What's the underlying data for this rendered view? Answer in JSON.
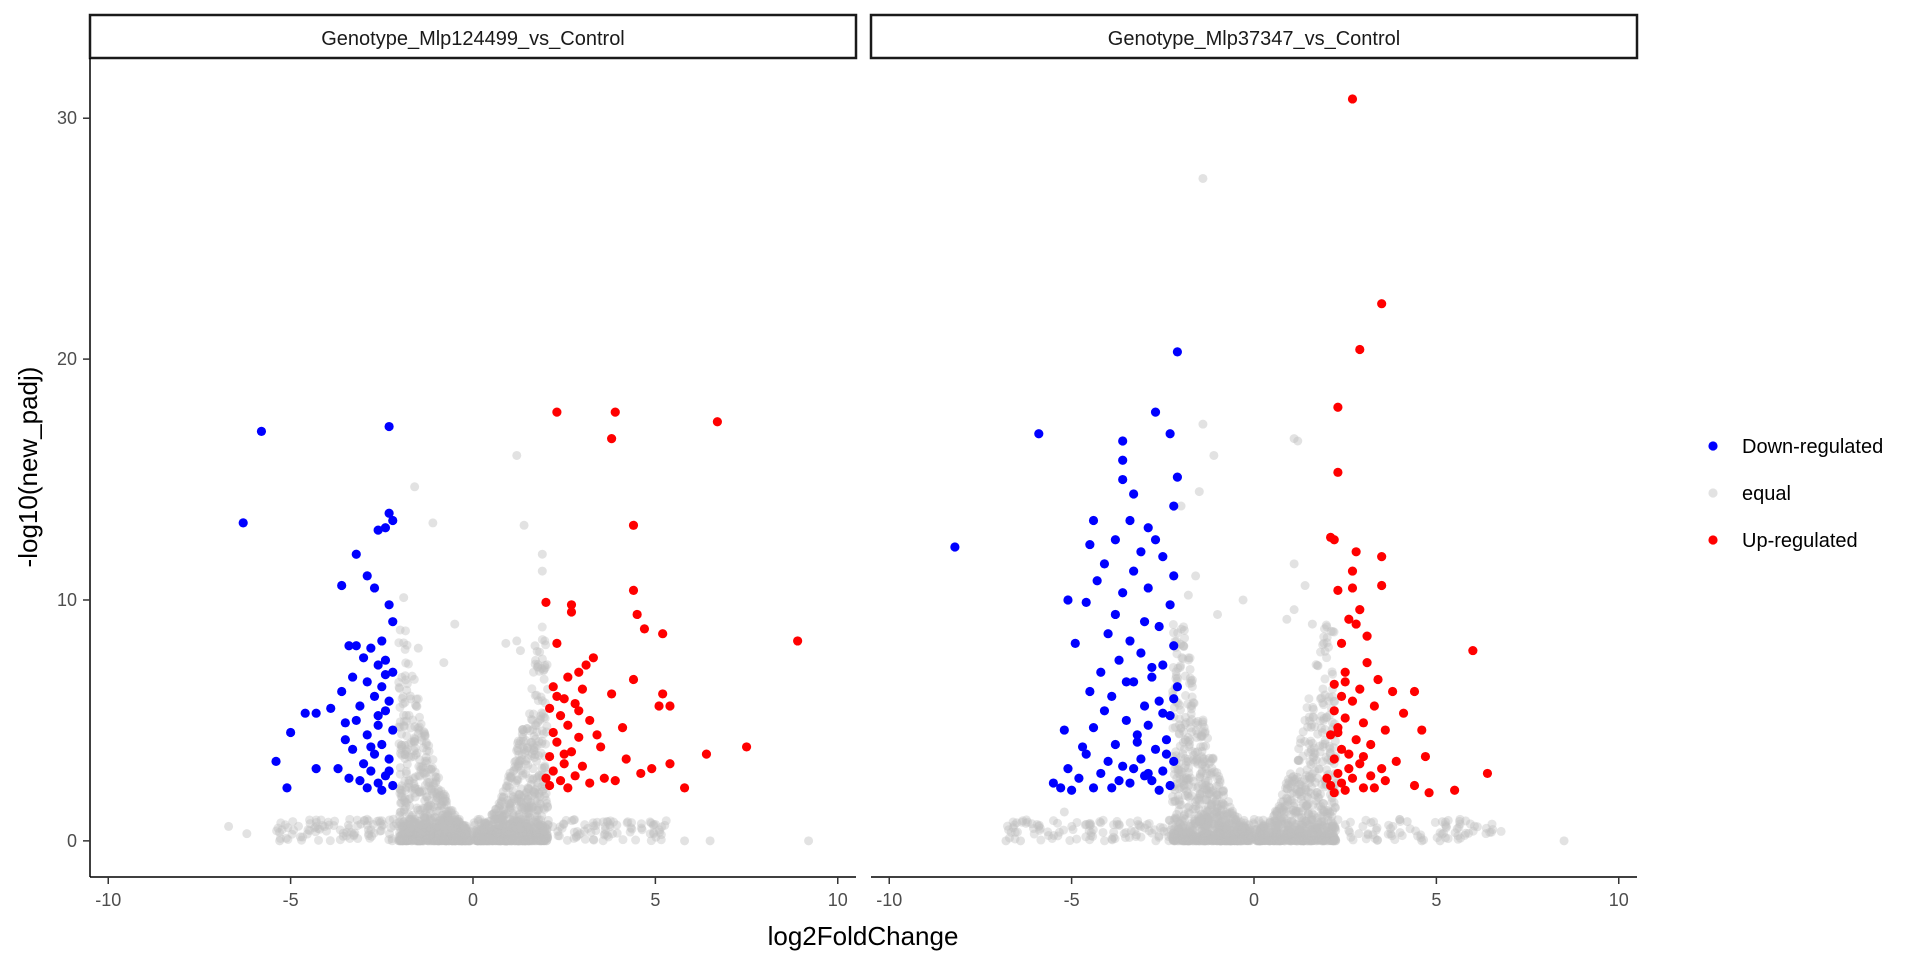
{
  "chart_data": {
    "type": "scatter",
    "xlabel": "log2FoldChange",
    "ylabel": "-log10(new_padj)",
    "xlim": [
      -10.5,
      10.5
    ],
    "ylim": [
      -1.5,
      32.5
    ],
    "x_ticks": [
      -10,
      -5,
      0,
      5,
      10
    ],
    "y_ticks": [
      0,
      10,
      20,
      30
    ],
    "grid": false,
    "legend_position": "right",
    "legend": [
      {
        "name": "Down-regulated",
        "color": "#0000ff"
      },
      {
        "name": "equal",
        "color": "#bebebe"
      },
      {
        "name": "Up-regulated",
        "color": "#ff0000"
      }
    ],
    "panels": [
      {
        "title": "Genotype_Mlp124499_vs_Control",
        "down": [
          [
            -5.8,
            17.0
          ],
          [
            -6.3,
            13.2
          ],
          [
            -2.3,
            17.2
          ],
          [
            -2.3,
            13.6
          ],
          [
            -2.2,
            13.3
          ],
          [
            -2.4,
            13.0
          ],
          [
            -2.6,
            12.9
          ],
          [
            -3.2,
            11.9
          ],
          [
            -2.9,
            11.0
          ],
          [
            -3.6,
            10.6
          ],
          [
            -2.7,
            10.5
          ],
          [
            -2.3,
            9.8
          ],
          [
            -2.2,
            9.1
          ],
          [
            -2.5,
            8.3
          ],
          [
            -3.2,
            8.1
          ],
          [
            -3.4,
            8.1
          ],
          [
            -2.8,
            8.0
          ],
          [
            -3.0,
            7.6
          ],
          [
            -2.4,
            7.5
          ],
          [
            -2.6,
            7.3
          ],
          [
            -2.2,
            7.0
          ],
          [
            -3.3,
            6.8
          ],
          [
            -2.9,
            6.6
          ],
          [
            -2.5,
            6.4
          ],
          [
            -3.6,
            6.2
          ],
          [
            -2.7,
            6.0
          ],
          [
            -2.3,
            5.8
          ],
          [
            -3.1,
            5.6
          ],
          [
            -2.4,
            5.4
          ],
          [
            -3.9,
            5.5
          ],
          [
            -4.3,
            5.3
          ],
          [
            -4.6,
            5.3
          ],
          [
            -5.0,
            4.5
          ],
          [
            -3.2,
            5.0
          ],
          [
            -2.6,
            4.8
          ],
          [
            -2.2,
            4.6
          ],
          [
            -2.9,
            4.4
          ],
          [
            -3.5,
            4.2
          ],
          [
            -2.5,
            4.0
          ],
          [
            -3.3,
            3.8
          ],
          [
            -2.7,
            3.6
          ],
          [
            -2.3,
            3.4
          ],
          [
            -3.0,
            3.2
          ],
          [
            -5.4,
            3.3
          ],
          [
            -4.3,
            3.0
          ],
          [
            -3.7,
            3.0
          ],
          [
            -2.8,
            2.9
          ],
          [
            -2.4,
            2.7
          ],
          [
            -3.1,
            2.5
          ],
          [
            -2.6,
            2.4
          ],
          [
            -2.2,
            2.3
          ],
          [
            -2.9,
            2.2
          ],
          [
            -5.1,
            2.2
          ],
          [
            -3.4,
            2.6
          ],
          [
            -2.5,
            2.1
          ],
          [
            -2.3,
            2.9
          ],
          [
            -2.8,
            3.9
          ],
          [
            -3.5,
            4.9
          ],
          [
            -2.4,
            6.9
          ],
          [
            -2.6,
            5.2
          ]
        ],
        "up": [
          [
            2.3,
            17.8
          ],
          [
            3.9,
            17.8
          ],
          [
            6.7,
            17.4
          ],
          [
            3.8,
            16.7
          ],
          [
            4.4,
            13.1
          ],
          [
            4.4,
            10.4
          ],
          [
            2.0,
            9.9
          ],
          [
            2.7,
            9.8
          ],
          [
            2.7,
            9.5
          ],
          [
            4.5,
            9.4
          ],
          [
            4.7,
            8.8
          ],
          [
            5.2,
            8.6
          ],
          [
            8.9,
            8.3
          ],
          [
            2.3,
            8.2
          ],
          [
            3.3,
            7.6
          ],
          [
            3.1,
            7.3
          ],
          [
            2.9,
            7.0
          ],
          [
            2.6,
            6.8
          ],
          [
            4.4,
            6.7
          ],
          [
            2.2,
            6.4
          ],
          [
            3.0,
            6.3
          ],
          [
            3.8,
            6.1
          ],
          [
            5.2,
            6.1
          ],
          [
            2.5,
            5.9
          ],
          [
            2.8,
            5.7
          ],
          [
            5.1,
            5.6
          ],
          [
            5.4,
            5.6
          ],
          [
            2.1,
            5.5
          ],
          [
            2.4,
            5.2
          ],
          [
            3.2,
            5.0
          ],
          [
            2.6,
            4.8
          ],
          [
            4.1,
            4.7
          ],
          [
            2.2,
            4.5
          ],
          [
            2.9,
            4.3
          ],
          [
            2.3,
            4.1
          ],
          [
            7.5,
            3.9
          ],
          [
            3.5,
            3.9
          ],
          [
            2.7,
            3.7
          ],
          [
            6.4,
            3.6
          ],
          [
            2.1,
            3.5
          ],
          [
            4.2,
            3.4
          ],
          [
            2.5,
            3.2
          ],
          [
            5.4,
            3.2
          ],
          [
            3.0,
            3.1
          ],
          [
            2.2,
            2.9
          ],
          [
            4.6,
            2.8
          ],
          [
            2.8,
            2.7
          ],
          [
            3.6,
            2.6
          ],
          [
            2.4,
            2.5
          ],
          [
            3.2,
            2.4
          ],
          [
            2.1,
            2.3
          ],
          [
            5.8,
            2.2
          ],
          [
            2.6,
            2.2
          ],
          [
            3.9,
            2.5
          ],
          [
            4.9,
            3.0
          ],
          [
            2.0,
            2.6
          ],
          [
            2.5,
            3.6
          ],
          [
            3.4,
            4.4
          ],
          [
            2.9,
            5.4
          ],
          [
            2.3,
            6.0
          ]
        ],
        "equal_extra": [
          [
            1.2,
            16.0
          ],
          [
            -1.6,
            14.7
          ],
          [
            -1.1,
            13.2
          ],
          [
            1.4,
            13.1
          ],
          [
            1.9,
            11.9
          ],
          [
            1.9,
            11.2
          ],
          [
            -1.9,
            10.1
          ],
          [
            1.2,
            8.3
          ],
          [
            -0.5,
            9.0
          ],
          [
            0.9,
            8.2
          ],
          [
            1.7,
            8.1
          ],
          [
            1.3,
            7.9
          ],
          [
            -1.5,
            8.0
          ],
          [
            -0.8,
            7.4
          ],
          [
            -6.7,
            0.6
          ],
          [
            -6.2,
            0.3
          ],
          [
            9.2,
            0.0
          ],
          [
            6.5,
            0.0
          ],
          [
            5.8,
            0.0
          ],
          [
            -5.3,
            0.0
          ]
        ]
      },
      {
        "title": "Genotype_Mlp37347_vs_Control",
        "down": [
          [
            -2.1,
            20.3
          ],
          [
            -5.9,
            16.9
          ],
          [
            -2.7,
            17.8
          ],
          [
            -2.3,
            16.9
          ],
          [
            -3.6,
            16.6
          ],
          [
            -3.6,
            15.8
          ],
          [
            -2.1,
            15.1
          ],
          [
            -3.6,
            15.0
          ],
          [
            -3.3,
            14.4
          ],
          [
            -2.2,
            13.9
          ],
          [
            -4.4,
            13.3
          ],
          [
            -3.4,
            13.3
          ],
          [
            -2.9,
            13.0
          ],
          [
            -8.2,
            12.2
          ],
          [
            -3.8,
            12.5
          ],
          [
            -2.7,
            12.5
          ],
          [
            -4.5,
            12.3
          ],
          [
            -3.1,
            12.0
          ],
          [
            -2.5,
            11.8
          ],
          [
            -4.1,
            11.5
          ],
          [
            -3.3,
            11.2
          ],
          [
            -2.2,
            11.0
          ],
          [
            -4.3,
            10.8
          ],
          [
            -2.9,
            10.5
          ],
          [
            -3.6,
            10.3
          ],
          [
            -5.1,
            10.0
          ],
          [
            -4.6,
            9.9
          ],
          [
            -2.3,
            9.8
          ],
          [
            -3.8,
            9.4
          ],
          [
            -3.0,
            9.1
          ],
          [
            -2.6,
            8.9
          ],
          [
            -4.0,
            8.6
          ],
          [
            -3.4,
            8.3
          ],
          [
            -2.2,
            8.1
          ],
          [
            -4.9,
            8.2
          ],
          [
            -3.1,
            7.8
          ],
          [
            -3.7,
            7.5
          ],
          [
            -2.5,
            7.3
          ],
          [
            -4.2,
            7.0
          ],
          [
            -2.8,
            6.8
          ],
          [
            -3.3,
            6.6
          ],
          [
            -2.1,
            6.4
          ],
          [
            -4.5,
            6.2
          ],
          [
            -3.9,
            6.0
          ],
          [
            -2.6,
            5.8
          ],
          [
            -3.0,
            5.6
          ],
          [
            -4.1,
            5.4
          ],
          [
            -2.3,
            5.2
          ],
          [
            -3.5,
            5.0
          ],
          [
            -2.9,
            4.8
          ],
          [
            -4.4,
            4.7
          ],
          [
            -5.2,
            4.6
          ],
          [
            -3.2,
            4.4
          ],
          [
            -2.4,
            4.2
          ],
          [
            -3.8,
            4.0
          ],
          [
            -2.7,
            3.8
          ],
          [
            -4.6,
            3.6
          ],
          [
            -3.1,
            3.4
          ],
          [
            -2.2,
            3.3
          ],
          [
            -3.6,
            3.1
          ],
          [
            -5.1,
            3.0
          ],
          [
            -2.5,
            2.9
          ],
          [
            -4.2,
            2.8
          ],
          [
            -3.0,
            2.7
          ],
          [
            -4.8,
            2.6
          ],
          [
            -2.8,
            2.5
          ],
          [
            -3.4,
            2.4
          ],
          [
            -5.5,
            2.4
          ],
          [
            -2.3,
            2.3
          ],
          [
            -3.9,
            2.2
          ],
          [
            -5.0,
            2.1
          ],
          [
            -2.6,
            2.1
          ],
          [
            -4.4,
            2.2
          ],
          [
            -5.3,
            2.2
          ],
          [
            -3.7,
            2.5
          ],
          [
            -2.9,
            2.8
          ],
          [
            -2.4,
            3.6
          ],
          [
            -3.2,
            4.1
          ],
          [
            -2.2,
            5.9
          ],
          [
            -3.5,
            6.6
          ],
          [
            -2.8,
            7.2
          ],
          [
            -4.0,
            3.3
          ],
          [
            -4.7,
            3.9
          ],
          [
            -3.3,
            3.0
          ],
          [
            -2.5,
            5.3
          ]
        ],
        "up": [
          [
            2.7,
            30.8
          ],
          [
            3.5,
            22.3
          ],
          [
            2.9,
            20.4
          ],
          [
            2.3,
            18.0
          ],
          [
            2.3,
            15.3
          ],
          [
            2.1,
            12.6
          ],
          [
            2.2,
            12.5
          ],
          [
            2.8,
            12.0
          ],
          [
            3.5,
            11.8
          ],
          [
            2.7,
            11.2
          ],
          [
            3.5,
            10.6
          ],
          [
            2.7,
            10.5
          ],
          [
            2.3,
            10.4
          ],
          [
            2.9,
            9.6
          ],
          [
            2.6,
            9.2
          ],
          [
            2.8,
            9.0
          ],
          [
            3.1,
            8.5
          ],
          [
            2.4,
            8.2
          ],
          [
            6.0,
            7.9
          ],
          [
            3.1,
            7.4
          ],
          [
            2.5,
            7.0
          ],
          [
            3.4,
            6.7
          ],
          [
            2.2,
            6.5
          ],
          [
            2.9,
            6.3
          ],
          [
            3.8,
            6.2
          ],
          [
            4.4,
            6.2
          ],
          [
            2.4,
            6.0
          ],
          [
            2.7,
            5.8
          ],
          [
            3.3,
            5.6
          ],
          [
            2.2,
            5.4
          ],
          [
            4.1,
            5.3
          ],
          [
            2.5,
            5.1
          ],
          [
            3.0,
            4.9
          ],
          [
            2.3,
            4.7
          ],
          [
            3.6,
            4.6
          ],
          [
            4.6,
            4.6
          ],
          [
            2.1,
            4.4
          ],
          [
            2.8,
            4.2
          ],
          [
            3.2,
            4.0
          ],
          [
            2.4,
            3.8
          ],
          [
            2.6,
            3.6
          ],
          [
            4.7,
            3.5
          ],
          [
            2.2,
            3.4
          ],
          [
            3.9,
            3.3
          ],
          [
            2.9,
            3.2
          ],
          [
            3.5,
            3.0
          ],
          [
            6.4,
            2.8
          ],
          [
            2.3,
            2.8
          ],
          [
            3.2,
            2.7
          ],
          [
            2.7,
            2.6
          ],
          [
            3.6,
            2.5
          ],
          [
            2.4,
            2.4
          ],
          [
            4.4,
            2.3
          ],
          [
            2.1,
            2.3
          ],
          [
            3.0,
            2.2
          ],
          [
            5.5,
            2.1
          ],
          [
            2.5,
            2.1
          ],
          [
            4.8,
            2.0
          ],
          [
            2.2,
            2.0
          ],
          [
            3.3,
            2.2
          ],
          [
            2.0,
            2.6
          ],
          [
            2.6,
            3.0
          ],
          [
            3.0,
            3.5
          ],
          [
            2.3,
            4.5
          ],
          [
            2.5,
            6.6
          ]
        ],
        "equal_extra": [
          [
            -1.4,
            27.5
          ],
          [
            -1.4,
            17.3
          ],
          [
            -1.1,
            16.0
          ],
          [
            1.1,
            16.7
          ],
          [
            1.2,
            16.6
          ],
          [
            -1.5,
            14.5
          ],
          [
            -2.0,
            13.9
          ],
          [
            1.1,
            11.5
          ],
          [
            -0.3,
            10.0
          ],
          [
            -1.6,
            11.0
          ],
          [
            1.4,
            10.6
          ],
          [
            1.1,
            9.6
          ],
          [
            0.9,
            9.2
          ],
          [
            1.6,
            9.0
          ],
          [
            -1.0,
            9.4
          ],
          [
            -1.8,
            10.2
          ],
          [
            -6.8,
            0.0
          ],
          [
            -6.4,
            0.0
          ],
          [
            8.5,
            0.0
          ],
          [
            5.1,
            0.0
          ],
          [
            4.6,
            0.0
          ],
          [
            -5.9,
            0.6
          ],
          [
            -5.2,
            1.2
          ],
          [
            4.2,
            0.8
          ]
        ]
      }
    ]
  }
}
